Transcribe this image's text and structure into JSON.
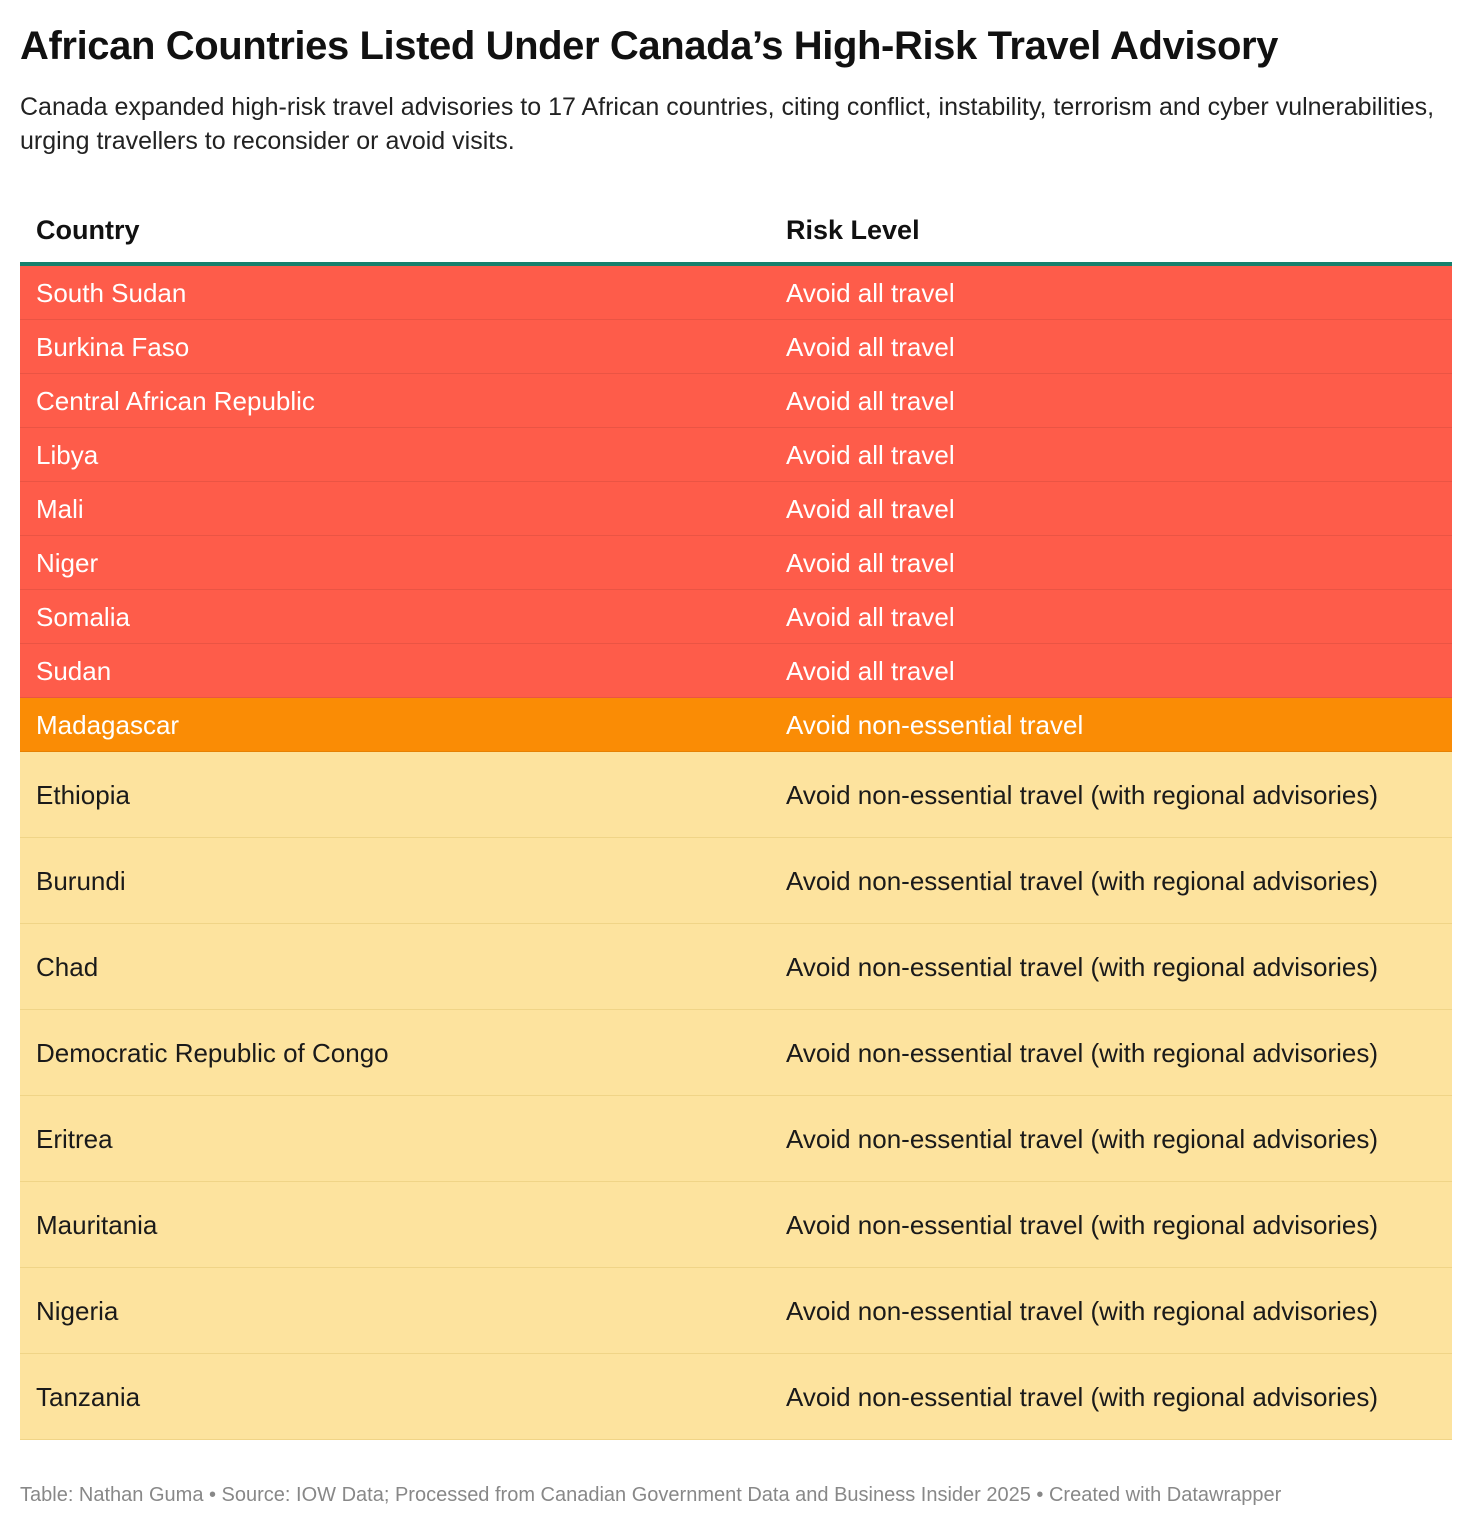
{
  "header": {
    "title": "African Countries Listed Under Canada’s High-Risk Travel Advisory",
    "subtitle": "Canada expanded high-risk travel advisories to 17 African countries, citing conflict, instability, terrorism and cyber vulnerabilities, urging travellers to reconsider or avoid visits."
  },
  "chart_data": {
    "type": "table",
    "columns": [
      "Country",
      "Risk Level"
    ],
    "rows": [
      {
        "country": "South Sudan",
        "risk": "Avoid all travel",
        "level": "red"
      },
      {
        "country": "Burkina Faso",
        "risk": "Avoid all travel",
        "level": "red"
      },
      {
        "country": "Central African Republic",
        "risk": "Avoid all travel",
        "level": "red"
      },
      {
        "country": "Libya",
        "risk": "Avoid all travel",
        "level": "red"
      },
      {
        "country": "Mali",
        "risk": "Avoid all travel",
        "level": "red"
      },
      {
        "country": "Niger",
        "risk": "Avoid all travel",
        "level": "red"
      },
      {
        "country": "Somalia",
        "risk": "Avoid all travel",
        "level": "red"
      },
      {
        "country": "Sudan",
        "risk": "Avoid all travel",
        "level": "red"
      },
      {
        "country": "Madagascar",
        "risk": "Avoid non-essential travel",
        "level": "orange"
      },
      {
        "country": "Ethiopia",
        "risk": "Avoid non-essential travel (with regional advisories)",
        "level": "yellow"
      },
      {
        "country": "Burundi",
        "risk": "Avoid non-essential travel (with regional advisories)",
        "level": "yellow"
      },
      {
        "country": "Chad",
        "risk": "Avoid non-essential travel (with regional advisories)",
        "level": "yellow"
      },
      {
        "country": "Democratic Republic of Congo",
        "risk": "Avoid non-essential travel (with regional advisories)",
        "level": "yellow"
      },
      {
        "country": "Eritrea",
        "risk": "Avoid non-essential travel (with regional advisories)",
        "level": "yellow"
      },
      {
        "country": "Mauritania",
        "risk": "Avoid non-essential travel (with regional advisories)",
        "level": "yellow"
      },
      {
        "country": "Nigeria",
        "risk": "Avoid non-essential travel (with regional advisories)",
        "level": "yellow"
      },
      {
        "country": "Tanzania",
        "risk": "Avoid non-essential travel (with regional advisories)",
        "level": "yellow"
      }
    ],
    "colors": {
      "red": "#fe5c4a",
      "orange": "#fa8c05",
      "yellow": "#fde39e",
      "header_rule": "#17806d"
    }
  },
  "footer": {
    "credit": "Table: Nathan Guma  • Source: IOW Data; Processed from Canadian Government Data and Business Insider 2025 • Created with Datawrapper"
  }
}
